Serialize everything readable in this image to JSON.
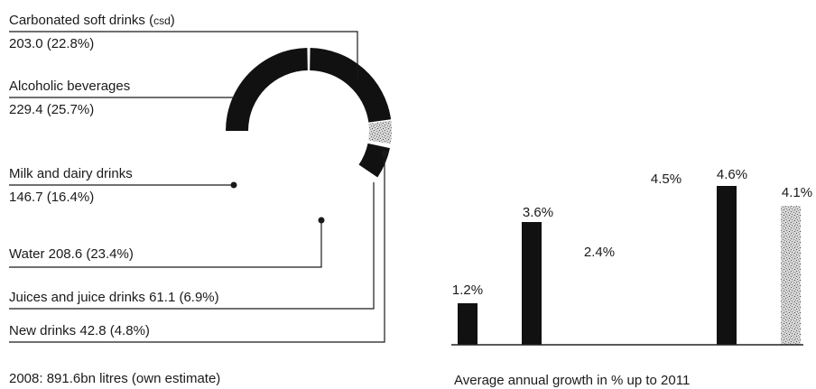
{
  "chart_data": [
    {
      "type": "pie",
      "variant": "partial-ring",
      "footnote": "2008: 891.6bn litres (own estimate)",
      "unit": "bn litres",
      "total": 891.6,
      "slices": [
        {
          "name": "Carbonated soft drinks (CSD)",
          "name_prefix": "Carbonated soft drinks (",
          "name_abbr": "csd",
          "name_suffix": ")",
          "value_text": "203.0 (22.8%)",
          "value": 203.0,
          "percent": 22.8,
          "color": "#111111"
        },
        {
          "name": "Alcoholic beverages",
          "value_text": "229.4 (25.7%)",
          "value": 229.4,
          "percent": 25.7,
          "color": "#111111"
        },
        {
          "name": "Milk and dairy drinks",
          "value_text": "146.7 (16.4%)",
          "value": 146.7,
          "percent": 16.4,
          "color": "#ffffff"
        },
        {
          "name": "Water",
          "value_text": "208.6 (23.4%)",
          "value": 208.6,
          "percent": 23.4,
          "color": "#ffffff"
        },
        {
          "name": "Juices and juice drinks",
          "value_text": "61.1 (6.9%)",
          "value": 61.1,
          "percent": 6.9,
          "color": "#111111"
        },
        {
          "name": "New drinks",
          "value_text": "42.8 (4.8%)",
          "value": 42.8,
          "percent": 4.8,
          "color": "#bdbdbd",
          "pattern": "speckled"
        }
      ]
    },
    {
      "type": "bar",
      "title": "Average annual growth in % up to 2011",
      "ylim": [
        0,
        5.5
      ],
      "values": [
        1.2,
        3.6,
        2.4,
        4.5,
        4.6,
        4.1
      ],
      "value_labels": [
        "1.2%",
        "3.6%",
        "2.4%",
        "4.5%",
        "4.6%",
        "4.1%"
      ],
      "bar_styles": [
        "solid",
        "solid",
        "hidden",
        "hidden",
        "solid",
        "speckled"
      ],
      "colors": {
        "solid": "#111111",
        "speckled": "#9a9a9a"
      }
    }
  ]
}
